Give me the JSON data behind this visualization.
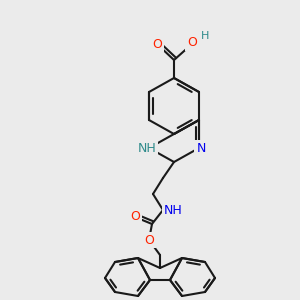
{
  "bg_color": "#ebebeb",
  "bond_color": "#1a1a1a",
  "bond_width": 1.5,
  "atom_colors": {
    "O": "#ff2200",
    "N": "#0000ee",
    "NH": "#2e8b8b",
    "C": "#1a1a1a"
  },
  "font_size_atom": 9,
  "font_size_small": 7.5
}
